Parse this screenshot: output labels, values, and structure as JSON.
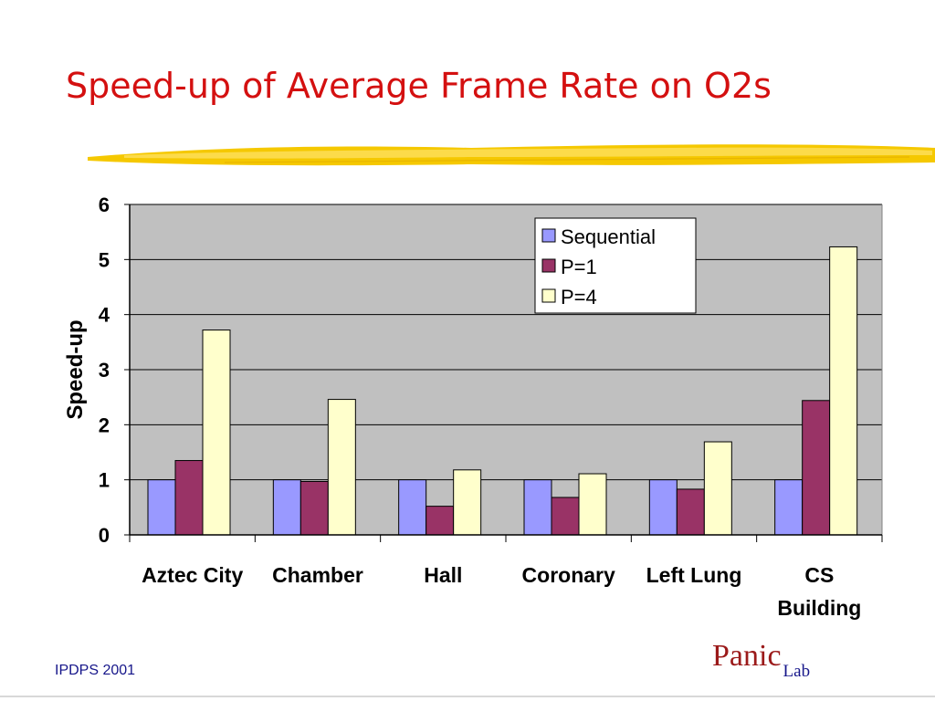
{
  "slide": {
    "title": "Speed-up of Average Frame Rate on O2s",
    "footer_left": "IPDPS 2001",
    "logo_main": "Panic",
    "logo_sub": "Lab"
  },
  "colors": {
    "title": "#d41010",
    "plot_background": "#c0c0c0",
    "stroke": "#f5c800"
  },
  "chart_data": {
    "type": "bar",
    "title": "",
    "xlabel": "",
    "ylabel": "Speed-up",
    "ylim": [
      0,
      6
    ],
    "yticks": [
      "0",
      "1",
      "2",
      "3",
      "4",
      "5",
      "6"
    ],
    "grid": true,
    "legend_position": "top-right",
    "categories": [
      [
        "Aztec City"
      ],
      [
        "Chamber"
      ],
      [
        "Hall"
      ],
      [
        "Coronary"
      ],
      [
        "Left Lung"
      ],
      [
        "CS",
        "Building"
      ]
    ],
    "series": [
      {
        "name": "Sequential",
        "color": "#9999ff",
        "values": [
          1.0,
          1.0,
          1.0,
          1.0,
          1.0,
          1.0
        ]
      },
      {
        "name": "P=1",
        "color": "#993366",
        "values": [
          1.35,
          0.97,
          0.52,
          0.68,
          0.83,
          2.44
        ]
      },
      {
        "name": "P=4",
        "color": "#ffffcc",
        "values": [
          3.72,
          2.46,
          1.18,
          1.11,
          1.69,
          5.23
        ]
      }
    ]
  }
}
